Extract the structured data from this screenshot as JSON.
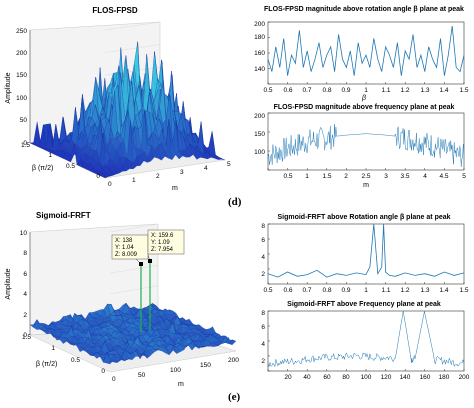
{
  "figures": {
    "d": {
      "panel_label": "(d)",
      "surface": {
        "title": "FLOS-FPSD",
        "zlabel": "Amplitude",
        "xlabel": "m",
        "ylabel": "β (π/2)",
        "zticks": [
          "0",
          "50",
          "100",
          "150",
          "200",
          "250"
        ],
        "xticks": [
          "0",
          "1",
          "2",
          "3",
          "4",
          "5"
        ],
        "yticks": [
          "0",
          "0.5",
          "1",
          "1.5"
        ]
      },
      "top": {
        "title": "FLOS-FPSD magnitude above rotation angle β plane at peak",
        "xlabel": "β",
        "xticks": [
          "0.5",
          "0.6",
          "0.7",
          "0.8",
          "0.9",
          "1",
          "1.1",
          "1.2",
          "1.3",
          "1.4",
          "1.5"
        ],
        "yticks": [
          "140",
          "160",
          "180",
          "200"
        ]
      },
      "bottom": {
        "title": "FLOS-FPSD magnitude above frequency plane at peak",
        "xlabel": "m",
        "xticks": [
          "0.5",
          "1",
          "1.5",
          "2",
          "2.5",
          "3",
          "3.5",
          "4",
          "4.5",
          "5"
        ],
        "yticks": [
          "100",
          "150",
          "200"
        ]
      }
    },
    "e": {
      "panel_label": "(e)",
      "surface": {
        "title": "Sigmoid-FRFT",
        "zlabel": "Amplitude",
        "xlabel": "m",
        "ylabel": "β (π/2)",
        "zticks": [
          "0",
          "2",
          "4",
          "6",
          "8",
          "10"
        ],
        "xticks": [
          "0",
          "50",
          "100",
          "150",
          "200"
        ],
        "yticks": [
          "0",
          "0.5",
          "1",
          "1.5"
        ],
        "tip1": [
          "X: 138",
          "Y: 1.04",
          "Z: 8.009"
        ],
        "tip2": [
          "X: 159.6",
          "Y: 1.09",
          "Z: 7.954"
        ]
      },
      "top": {
        "title": "Sigmoid-FRFT above Rotation angle β plane at peak",
        "xticks": [
          "0.5",
          "0.6",
          "0.7",
          "0.8",
          "0.9",
          "1",
          "1.1",
          "1.2",
          "1.3",
          "1.4",
          "1.5"
        ],
        "yticks": [
          "2",
          "4",
          "6",
          "8"
        ]
      },
      "bottom": {
        "title": "Sigmoid-FRFT above Frequency plane at peak",
        "xticks": [
          "20",
          "40",
          "60",
          "80",
          "100",
          "120",
          "140",
          "160",
          "180",
          "200"
        ],
        "yticks": [
          "2",
          "4",
          "6",
          "8"
        ]
      }
    }
  },
  "colors": {
    "line": "#1f77b4",
    "surface_dark": "#1c2fb8",
    "surface_light": "#38c8e0"
  },
  "chart_data": [
    {
      "type": "line",
      "title": "FLOS-FPSD magnitude above rotation angle β plane at peak",
      "xlabel": "β",
      "ylabel": "",
      "xlim": [
        0.5,
        1.5
      ],
      "ylim": [
        130,
        205
      ],
      "series": [
        {
          "x": [
            0.5,
            0.52,
            0.54,
            0.56,
            0.58,
            0.6,
            0.62,
            0.64,
            0.66,
            0.68,
            0.7,
            0.72,
            0.74,
            0.76,
            0.78,
            0.8,
            0.82,
            0.84,
            0.86,
            0.88,
            0.9,
            0.92,
            0.94,
            0.96,
            0.98,
            1.0,
            1.02,
            1.04,
            1.06,
            1.08,
            1.1,
            1.12,
            1.14,
            1.16,
            1.18,
            1.2,
            1.22,
            1.24,
            1.26,
            1.28,
            1.3,
            1.32,
            1.34,
            1.36,
            1.38,
            1.4,
            1.42,
            1.44,
            1.46,
            1.48,
            1.5
          ],
          "values": [
            160,
            145,
            175,
            150,
            185,
            140,
            165,
            155,
            195,
            150,
            170,
            145,
            160,
            180,
            150,
            165,
            175,
            145,
            190,
            160,
            150,
            170,
            140,
            180,
            155,
            165,
            150,
            185,
            160,
            145,
            175,
            165,
            150,
            180,
            140,
            170,
            160,
            190,
            150,
            165,
            145,
            175,
            160,
            150,
            185,
            140,
            165,
            200,
            150,
            145,
            165
          ]
        }
      ]
    },
    {
      "type": "line",
      "title": "FLOS-FPSD magnitude above frequency plane at peak",
      "xlabel": "m",
      "ylabel": "",
      "xlim": [
        0,
        5
      ],
      "ylim": [
        50,
        210
      ],
      "series": [
        {
          "x": [
            0,
            0.25,
            0.5,
            0.75,
            1,
            1.25,
            1.5,
            1.75,
            2,
            2.25,
            2.5,
            2.75,
            3,
            3.25,
            3.5,
            3.75,
            4,
            4.25,
            4.5,
            4.75,
            5
          ],
          "values": [
            90,
            100,
            110,
            120,
            130,
            135,
            140,
            145,
            148,
            150,
            152,
            150,
            148,
            145,
            140,
            135,
            125,
            118,
            105,
            95,
            88
          ]
        }
      ]
    },
    {
      "type": "line",
      "title": "Sigmoid-FRFT above Rotation angle β plane at peak",
      "xlabel": "",
      "ylabel": "",
      "xlim": [
        0.5,
        1.5
      ],
      "ylim": [
        1,
        8
      ],
      "series": [
        {
          "x": [
            0.5,
            0.55,
            0.6,
            0.65,
            0.7,
            0.75,
            0.8,
            0.85,
            0.9,
            0.95,
            1.0,
            1.02,
            1.04,
            1.06,
            1.08,
            1.09,
            1.1,
            1.12,
            1.15,
            1.2,
            1.25,
            1.3,
            1.35,
            1.4,
            1.45,
            1.5
          ],
          "values": [
            2.2,
            1.8,
            2.4,
            1.9,
            2.1,
            2.6,
            1.8,
            2.2,
            2.0,
            2.3,
            2.1,
            3.0,
            8.0,
            2.2,
            3.0,
            8.0,
            2.4,
            2.0,
            1.9,
            2.3,
            2.0,
            2.2,
            1.9,
            2.4,
            2.0,
            2.3
          ]
        }
      ]
    },
    {
      "type": "line",
      "title": "Sigmoid-FRFT above Frequency plane at peak",
      "xlabel": "",
      "ylabel": "",
      "xlim": [
        0,
        200
      ],
      "ylim": [
        1,
        8
      ],
      "series": [
        {
          "x": [
            0,
            10,
            20,
            30,
            40,
            50,
            60,
            70,
            80,
            90,
            100,
            110,
            120,
            130,
            138,
            146,
            150,
            159.6,
            170,
            180,
            190,
            200
          ],
          "values": [
            1.8,
            2.0,
            2.1,
            2.2,
            2.4,
            2.5,
            2.6,
            2.6,
            2.7,
            2.8,
            2.7,
            2.6,
            2.6,
            2.5,
            8.0,
            2.4,
            2.4,
            7.95,
            2.3,
            2.2,
            2.0,
            1.9
          ]
        }
      ]
    },
    {
      "type": "surface",
      "title": "FLOS-FPSD",
      "xlabel": "m",
      "ylabel": "β (π/2)",
      "zlabel": "Amplitude",
      "xlim": [
        0,
        5
      ],
      "ylim": [
        0,
        1.5
      ],
      "zlim": [
        0,
        250
      ]
    },
    {
      "type": "surface",
      "title": "Sigmoid-FRFT",
      "xlabel": "m",
      "ylabel": "β (π/2)",
      "zlabel": "Amplitude",
      "xlim": [
        0,
        200
      ],
      "ylim": [
        0,
        1.5
      ],
      "zlim": [
        0,
        10
      ],
      "peaks": [
        {
          "x": 138,
          "y": 1.04,
          "z": 8.009
        },
        {
          "x": 159.6,
          "y": 1.09,
          "z": 7.954
        }
      ]
    }
  ]
}
